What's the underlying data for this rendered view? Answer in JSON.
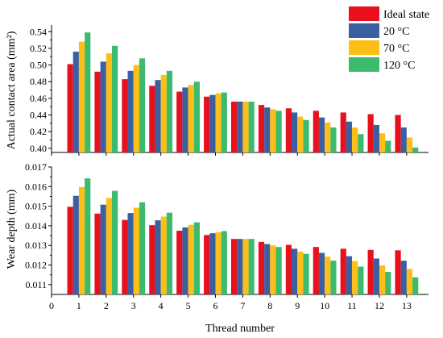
{
  "chart_data": [
    {
      "type": "bar",
      "ylabel": "Actual contact area (mm²)",
      "xlabel": "",
      "categories": [
        "1",
        "2",
        "3",
        "4",
        "5",
        "6",
        "7",
        "8",
        "9",
        "10",
        "11",
        "12",
        "13"
      ],
      "x_ticks": [
        "0",
        "1",
        "2",
        "3",
        "4",
        "5",
        "6",
        "7",
        "8",
        "9",
        "10",
        "11",
        "12",
        "13"
      ],
      "y_ticks": [
        "0.40",
        "0.42",
        "0.44",
        "0.46",
        "0.48",
        "0.50",
        "0.52",
        "0.54"
      ],
      "ylim": [
        0.395,
        0.548
      ],
      "series": [
        {
          "name": "Ideal state",
          "color": "#e8101c",
          "values": [
            0.501,
            0.492,
            0.483,
            0.475,
            0.468,
            0.462,
            0.456,
            0.452,
            0.448,
            0.445,
            0.443,
            0.441,
            0.44
          ]
        },
        {
          "name": "20 °C",
          "color": "#3b5fa0",
          "values": [
            0.516,
            0.504,
            0.493,
            0.482,
            0.473,
            0.464,
            0.456,
            0.449,
            0.443,
            0.437,
            0.432,
            0.428,
            0.425
          ]
        },
        {
          "name": "70 °C",
          "color": "#fbbf17",
          "values": [
            0.528,
            0.514,
            0.5,
            0.488,
            0.476,
            0.466,
            0.456,
            0.447,
            0.438,
            0.431,
            0.425,
            0.418,
            0.413
          ]
        },
        {
          "name": "120 °C",
          "color": "#3dbb6c",
          "values": [
            0.539,
            0.523,
            0.508,
            0.493,
            0.48,
            0.467,
            0.456,
            0.445,
            0.434,
            0.425,
            0.417,
            0.409,
            0.401
          ]
        }
      ]
    },
    {
      "type": "bar",
      "ylabel": "Wear depth (mm)",
      "xlabel": "Thread number",
      "categories": [
        "1",
        "2",
        "3",
        "4",
        "5",
        "6",
        "7",
        "8",
        "9",
        "10",
        "11",
        "12",
        "13"
      ],
      "x_ticks": [
        "0",
        "1",
        "2",
        "3",
        "4",
        "5",
        "6",
        "7",
        "8",
        "9",
        "10",
        "11",
        "12",
        "13"
      ],
      "y_ticks": [
        "0.011",
        "0.012",
        "0.013",
        "0.014",
        "0.015",
        "0.016",
        "0.017"
      ],
      "ylim": [
        0.0105,
        0.017
      ],
      "series": [
        {
          "name": "Ideal state",
          "color": "#e8101c",
          "values": [
            0.01497,
            0.01462,
            0.0143,
            0.01403,
            0.01375,
            0.01353,
            0.01333,
            0.01318,
            0.01303,
            0.01292,
            0.01283,
            0.01277,
            0.01275
          ]
        },
        {
          "name": "20 °C",
          "color": "#3b5fa0",
          "values": [
            0.01553,
            0.01508,
            0.01465,
            0.01428,
            0.01392,
            0.01362,
            0.01333,
            0.01307,
            0.01283,
            0.01262,
            0.01245,
            0.01233,
            0.01222
          ]
        },
        {
          "name": "70 °C",
          "color": "#fbbf17",
          "values": [
            0.01598,
            0.01542,
            0.01492,
            0.01447,
            0.01405,
            0.01367,
            0.01333,
            0.013,
            0.01268,
            0.01243,
            0.0122,
            0.01198,
            0.0118
          ]
        },
        {
          "name": "120 °C",
          "color": "#3dbb6c",
          "values": [
            0.01642,
            0.01578,
            0.0152,
            0.01467,
            0.01418,
            0.01373,
            0.01333,
            0.01292,
            0.01257,
            0.01222,
            0.01192,
            0.01165,
            0.01137
          ]
        }
      ]
    }
  ],
  "legend": {
    "placement": "top-right",
    "entries": [
      {
        "label": "Ideal state",
        "color": "#e8101c"
      },
      {
        "label": "20 °C",
        "color": "#3b5fa0"
      },
      {
        "label": "70 °C",
        "color": "#fbbf17"
      },
      {
        "label": "120 °C",
        "color": "#3dbb6c"
      }
    ]
  }
}
